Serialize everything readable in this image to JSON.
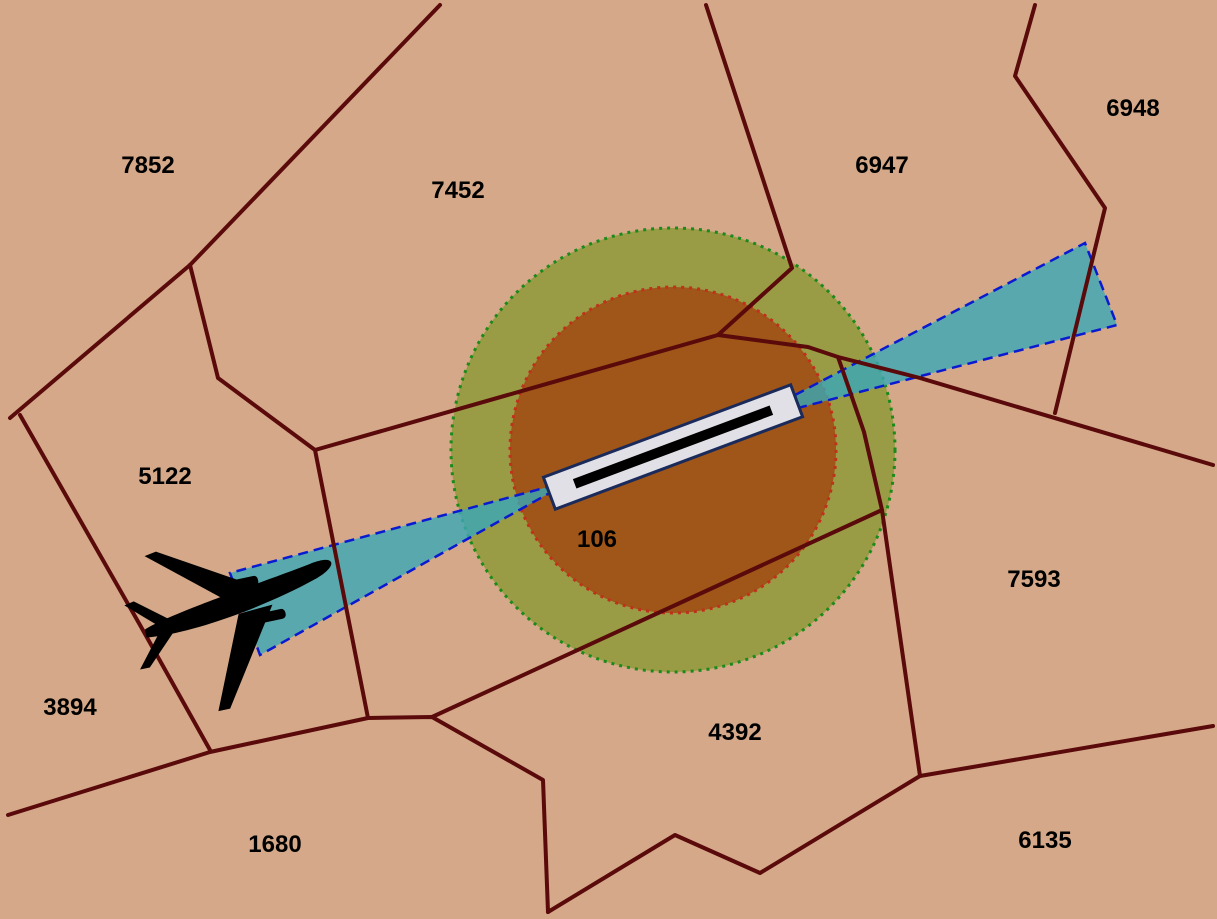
{
  "colors": {
    "land": "#d4a888",
    "boundary": "#5a0a0a",
    "outer_buffer_fill": "#8e9a3a",
    "outer_buffer_stroke": "#1a8a1a",
    "inner_buffer_fill": "#a04a10",
    "inner_buffer_stroke": "#c0301c",
    "approach_fill": "#3aa8b8",
    "approach_stroke": "#0a1ad0",
    "runway_fill": "#e0e0e6",
    "runway_stroke": "#1a2a5a",
    "runway_centerline": "#000000",
    "aircraft": "#000000"
  },
  "zones": [
    {
      "id": "7852",
      "label": "7852"
    },
    {
      "id": "7452",
      "label": "7452"
    },
    {
      "id": "6947",
      "label": "6947"
    },
    {
      "id": "6948",
      "label": "6948"
    },
    {
      "id": "5122",
      "label": "5122"
    },
    {
      "id": "106",
      "label": "106"
    },
    {
      "id": "7593",
      "label": "7593"
    },
    {
      "id": "3894",
      "label": "3894"
    },
    {
      "id": "4392",
      "label": "4392"
    },
    {
      "id": "1680",
      "label": "1680"
    },
    {
      "id": "6135",
      "label": "6135"
    }
  ],
  "icons": {
    "aircraft": "airplane-icon",
    "runway": "runway-icon"
  }
}
